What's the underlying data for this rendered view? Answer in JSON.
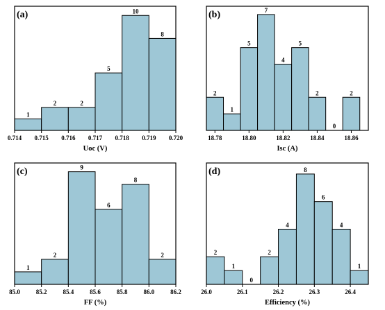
{
  "chart_data": [
    {
      "type": "bar",
      "panel": "(a)",
      "xlabel": "Uoc (V)",
      "xlim": [
        0.714,
        0.72
      ],
      "ylim": [
        0,
        10.8
      ],
      "xticks": [
        "0.714",
        "0.715",
        "0.716",
        "0.717",
        "0.718",
        "0.719",
        "0.720"
      ],
      "bins": [
        {
          "start": 0.714,
          "end": 0.715,
          "value": 1
        },
        {
          "start": 0.715,
          "end": 0.716,
          "value": 2
        },
        {
          "start": 0.716,
          "end": 0.717,
          "value": 2
        },
        {
          "start": 0.717,
          "end": 0.718,
          "value": 5
        },
        {
          "start": 0.718,
          "end": 0.719,
          "value": 10
        },
        {
          "start": 0.719,
          "end": 0.72,
          "value": 8
        }
      ],
      "bar_color": "#9ec7d6"
    },
    {
      "type": "bar",
      "panel": "(b)",
      "xlabel": "Isc (A)",
      "xlim": [
        18.775,
        18.87
      ],
      "ylim": [
        0,
        7.5
      ],
      "xticks": [
        "18.78",
        "18.80",
        "18.82",
        "18.84",
        "18.86"
      ],
      "xtick_values": [
        18.78,
        18.8,
        18.82,
        18.84,
        18.86
      ],
      "bins": [
        {
          "start": 18.775,
          "end": 18.785,
          "value": 2
        },
        {
          "start": 18.785,
          "end": 18.795,
          "value": 1
        },
        {
          "start": 18.795,
          "end": 18.805,
          "value": 5
        },
        {
          "start": 18.805,
          "end": 18.815,
          "value": 7
        },
        {
          "start": 18.815,
          "end": 18.825,
          "value": 4
        },
        {
          "start": 18.825,
          "end": 18.835,
          "value": 5
        },
        {
          "start": 18.835,
          "end": 18.845,
          "value": 2
        },
        {
          "start": 18.845,
          "end": 18.855,
          "value": 0
        },
        {
          "start": 18.855,
          "end": 18.865,
          "value": 2
        }
      ],
      "bar_color": "#9ec7d6"
    },
    {
      "type": "bar",
      "panel": "(c)",
      "xlabel": "FF (%)",
      "xlim": [
        85.0,
        86.2
      ],
      "ylim": [
        0,
        9.7
      ],
      "xticks": [
        "85.0",
        "85.2",
        "85.4",
        "85.6",
        "85.8",
        "86.0",
        "86.2"
      ],
      "bins": [
        {
          "start": 85.0,
          "end": 85.2,
          "value": 1
        },
        {
          "start": 85.2,
          "end": 85.4,
          "value": 2
        },
        {
          "start": 85.4,
          "end": 85.6,
          "value": 9
        },
        {
          "start": 85.6,
          "end": 85.8,
          "value": 6
        },
        {
          "start": 85.8,
          "end": 86.0,
          "value": 8
        },
        {
          "start": 86.0,
          "end": 86.2,
          "value": 2
        }
      ],
      "bar_color": "#9ec7d6"
    },
    {
      "type": "bar",
      "panel": "(d)",
      "xlabel": "Efficiency (%)",
      "xlim": [
        26.0,
        26.45
      ],
      "ylim": [
        0,
        8.8
      ],
      "xticks": [
        "26.0",
        "26.1",
        "26.2",
        "26.3",
        "26.4"
      ],
      "xtick_values": [
        26.0,
        26.1,
        26.2,
        26.3,
        26.4
      ],
      "bins": [
        {
          "start": 26.0,
          "end": 26.05,
          "value": 2
        },
        {
          "start": 26.05,
          "end": 26.1,
          "value": 1
        },
        {
          "start": 26.1,
          "end": 26.15,
          "value": 0
        },
        {
          "start": 26.15,
          "end": 26.2,
          "value": 2
        },
        {
          "start": 26.2,
          "end": 26.25,
          "value": 4
        },
        {
          "start": 26.25,
          "end": 26.3,
          "value": 8
        },
        {
          "start": 26.3,
          "end": 26.35,
          "value": 6
        },
        {
          "start": 26.35,
          "end": 26.4,
          "value": 4
        },
        {
          "start": 26.4,
          "end": 26.45,
          "value": 1
        }
      ],
      "bar_color": "#9ec7d6"
    }
  ]
}
